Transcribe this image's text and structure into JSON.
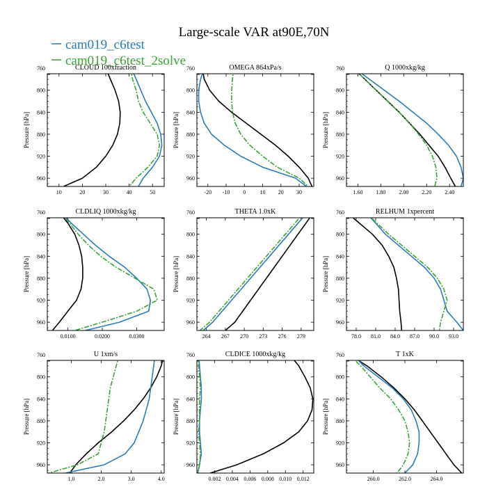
{
  "title": "Large-scale VAR at90E,70N",
  "colors": {
    "ref": "#000000",
    "test": "#2b7bb9",
    "solve": "#3aa335"
  },
  "legend": [
    {
      "label": "cam019_c6test",
      "color": "#2b7bb9",
      "style": "solid"
    },
    {
      "label": "cam019_c6test_2solve",
      "color": "#3aa335",
      "style": "dashdot"
    }
  ],
  "chart_data": [
    {
      "type": "line",
      "title": "CLOUD  100xfraction",
      "ylabel": "Pressure [hPa]",
      "ylim": [
        770,
        975
      ],
      "y_reversed": true,
      "xlim": [
        5,
        55
      ],
      "yticks": [
        760,
        800,
        840,
        880,
        920,
        960
      ],
      "xticks": [
        "10",
        "20",
        "30",
        "40",
        "50"
      ],
      "xtick_values": [
        10,
        20,
        30,
        40,
        50
      ],
      "y": [
        760,
        780,
        800,
        820,
        840,
        860,
        880,
        900,
        920,
        940,
        960,
        975
      ],
      "series": [
        {
          "ref": "black",
          "values": [
            30,
            32,
            34,
            35.5,
            36.2,
            36,
            35,
            33,
            30,
            26,
            20,
            12
          ]
        },
        {
          "ref": "test",
          "values": [
            41,
            43,
            45,
            47,
            49.5,
            52,
            53.5,
            54,
            53,
            50,
            46,
            44
          ]
        },
        {
          "ref": "solve",
          "values": [
            40.5,
            41.5,
            43,
            44,
            46,
            49,
            52,
            53,
            52,
            48,
            43,
            40
          ]
        }
      ]
    },
    {
      "type": "line",
      "title": "OMEGA  864xPa/s",
      "ylabel": "Pressure [hPa]",
      "ylim": [
        770,
        975
      ],
      "y_reversed": true,
      "xlim": [
        -26,
        38
      ],
      "yticks": [
        760,
        800,
        840,
        880,
        920,
        960
      ],
      "xticks": [
        "-20",
        "-10",
        "0",
        "10",
        "20",
        "30"
      ],
      "xtick_values": [
        -20,
        -10,
        0,
        10,
        20,
        30
      ],
      "y": [
        760,
        780,
        800,
        820,
        840,
        860,
        880,
        900,
        920,
        940,
        960,
        975
      ],
      "series": [
        {
          "ref": "black",
          "values": [
            -23,
            -22,
            -19,
            -14,
            -7,
            1,
            9,
            17,
            24,
            30,
            35,
            37
          ]
        },
        {
          "ref": "test",
          "values": [
            -22,
            -24,
            -25,
            -25,
            -24,
            -22,
            -18,
            -11,
            -2,
            10,
            28,
            34
          ]
        },
        {
          "ref": "solve",
          "values": [
            -6,
            -6.5,
            -7,
            -7,
            -6.5,
            -5,
            -2,
            3,
            10,
            18,
            30,
            35
          ]
        }
      ]
    },
    {
      "type": "line",
      "title": "Q  1000xkg/kg",
      "ylabel": "Pressure [hPa]",
      "ylim": [
        770,
        975
      ],
      "y_reversed": true,
      "xlim": [
        1.5,
        2.52
      ],
      "yticks": [
        760,
        800,
        840,
        880,
        920,
        960
      ],
      "xticks": [
        "1.60",
        "1.80",
        "2.00",
        "2.20",
        "2.40"
      ],
      "xtick_values": [
        1.6,
        1.8,
        2.0,
        2.2,
        2.4
      ],
      "y": [
        760,
        780,
        800,
        820,
        840,
        860,
        880,
        900,
        920,
        940,
        960,
        975
      ],
      "series": [
        {
          "ref": "black",
          "values": [
            1.56,
            1.66,
            1.76,
            1.86,
            1.96,
            2.05,
            2.14,
            2.22,
            2.3,
            2.36,
            2.41,
            2.45
          ]
        },
        {
          "ref": "test",
          "values": [
            1.57,
            1.7,
            1.83,
            1.96,
            2.08,
            2.2,
            2.3,
            2.39,
            2.46,
            2.5,
            2.52,
            2.5
          ]
        },
        {
          "ref": "solve",
          "values": [
            1.56,
            1.66,
            1.76,
            1.86,
            1.96,
            2.05,
            2.13,
            2.2,
            2.25,
            2.28,
            2.29,
            2.27
          ]
        }
      ]
    },
    {
      "type": "line",
      "title": "CLDLIQ  1000xkg/kg",
      "ylabel": "Pressure [hPa]",
      "ylim": [
        770,
        975
      ],
      "y_reversed": true,
      "xlim": [
        0.004,
        0.038
      ],
      "yticks": [
        760,
        800,
        840,
        880,
        920,
        960
      ],
      "xticks": [
        "0.0100",
        "0.0200",
        "0.0300"
      ],
      "xtick_values": [
        0.01,
        0.02,
        0.03
      ],
      "y": [
        760,
        780,
        800,
        820,
        840,
        860,
        880,
        900,
        920,
        940,
        960,
        975
      ],
      "series": [
        {
          "ref": "black",
          "values": [
            0.0075,
            0.01,
            0.012,
            0.0132,
            0.014,
            0.0143,
            0.0143,
            0.0138,
            0.0125,
            0.01,
            0.0075,
            0.0055
          ]
        },
        {
          "ref": "test",
          "values": [
            0.0078,
            0.011,
            0.0145,
            0.018,
            0.022,
            0.0265,
            0.03,
            0.033,
            0.034,
            0.0335,
            0.025,
            0.015
          ]
        },
        {
          "ref": "solve",
          "values": [
            0.0075,
            0.0105,
            0.013,
            0.016,
            0.0195,
            0.024,
            0.0295,
            0.035,
            0.036,
            0.03,
            0.02,
            0.012
          ]
        }
      ]
    },
    {
      "type": "line",
      "title": "THETA  1.0xK",
      "ylabel": "Pressure [hPa]",
      "ylim": [
        770,
        975
      ],
      "y_reversed": true,
      "xlim": [
        262.5,
        281
      ],
      "yticks": [
        760,
        800,
        840,
        880,
        920,
        960
      ],
      "xticks": [
        "264",
        "267",
        "270",
        "273",
        "276",
        "279"
      ],
      "xtick_values": [
        264,
        267,
        270,
        273,
        276,
        279
      ],
      "y": [
        760,
        800,
        840,
        880,
        920,
        960,
        975
      ],
      "series": [
        {
          "ref": "black",
          "values": [
            281,
            278.5,
            276,
            273.5,
            271,
            268.5,
            267
          ]
        },
        {
          "ref": "test",
          "values": [
            280,
            277,
            274,
            271,
            268,
            265,
            263.5
          ]
        },
        {
          "ref": "solve",
          "values": [
            279.5,
            276.5,
            273.5,
            270.5,
            267.5,
            264.5,
            263
          ]
        }
      ]
    },
    {
      "type": "line",
      "title": "RELHUM  1xpercent",
      "ylabel": "Pressure [hPa]",
      "ylim": [
        770,
        975
      ],
      "y_reversed": true,
      "xlim": [
        76.5,
        94.5
      ],
      "yticks": [
        760,
        800,
        840,
        880,
        920,
        960
      ],
      "xticks": [
        "78.0",
        "81.0",
        "84.0",
        "87.0",
        "90.0",
        "93.0"
      ],
      "xtick_values": [
        78,
        81,
        84,
        87,
        90,
        93
      ],
      "y": [
        760,
        780,
        800,
        820,
        840,
        860,
        880,
        900,
        920,
        940,
        960,
        975
      ],
      "series": [
        {
          "ref": "black",
          "values": [
            76.5,
            78.5,
            80.5,
            82,
            83,
            83.8,
            84.2,
            84.5,
            84.6,
            84.7,
            84.9,
            85
          ]
        },
        {
          "ref": "test",
          "values": [
            79.5,
            81,
            82.5,
            84.5,
            86.5,
            88.5,
            90,
            91,
            91.5,
            92,
            93.5,
            94.5
          ]
        },
        {
          "ref": "solve",
          "values": [
            79.5,
            81.2,
            83,
            85,
            87,
            89,
            90.5,
            91.5,
            92,
            91.5,
            91,
            90.8
          ]
        }
      ]
    },
    {
      "type": "line",
      "title": "U  1xm/s",
      "ylabel": "Pressure [hPa]",
      "ylim": [
        770,
        975
      ],
      "y_reversed": true,
      "xlim": [
        0.2,
        4.1
      ],
      "yticks": [
        760,
        800,
        840,
        880,
        920,
        960
      ],
      "xticks": [
        "1.0",
        "2.0",
        "3.0",
        "4.0"
      ],
      "xtick_values": [
        1,
        2,
        3,
        4
      ],
      "y": [
        760,
        780,
        800,
        820,
        840,
        860,
        880,
        900,
        920,
        940,
        960,
        975
      ],
      "series": [
        {
          "ref": "black",
          "values": [
            4.1,
            4.0,
            3.85,
            3.65,
            3.4,
            3.1,
            2.75,
            2.35,
            1.9,
            1.5,
            1.15,
            0.95
          ]
        },
        {
          "ref": "test",
          "values": [
            3.8,
            3.75,
            3.7,
            3.65,
            3.6,
            3.5,
            3.4,
            3.25,
            3.1,
            2.8,
            2.1,
            0.8
          ]
        },
        {
          "ref": "solve",
          "values": [
            2.6,
            2.5,
            2.4,
            2.3,
            2.25,
            2.2,
            2.15,
            2.1,
            2.0,
            1.9,
            1.2,
            0.25
          ]
        }
      ]
    },
    {
      "type": "line",
      "title": "CLDICE  1000xkg/kg",
      "ylabel": "Pressure [hPa]",
      "ylim": [
        770,
        975
      ],
      "y_reversed": true,
      "xlim": [
        0.0,
        0.0132
      ],
      "yticks": [
        760,
        800,
        840,
        880,
        920,
        960
      ],
      "xticks": [
        "0.002",
        "0.004",
        "0.006",
        "0.008",
        "0.010",
        "0.012"
      ],
      "xtick_values": [
        0.002,
        0.004,
        0.006,
        0.008,
        0.01,
        0.012
      ],
      "y": [
        760,
        780,
        800,
        820,
        840,
        860,
        880,
        900,
        920,
        940,
        960,
        975
      ],
      "series": [
        {
          "ref": "black",
          "values": [
            0.0105,
            0.0115,
            0.0122,
            0.0128,
            0.0131,
            0.013,
            0.0125,
            0.0115,
            0.0098,
            0.0075,
            0.0045,
            0.0015
          ]
        },
        {
          "ref": "test",
          "values": [
            0.0002,
            0.0003,
            0.0004,
            0.0005,
            0.0005,
            0.0004,
            0.0003,
            0.0003,
            0.0004,
            0.0005,
            0.0003,
            0.0001
          ]
        },
        {
          "ref": "solve",
          "values": [
            0.0002,
            0.0002,
            0.0003,
            0.0004,
            0.0003,
            0.0003,
            0.0003,
            0.0002,
            0.0003,
            0.0004,
            0.0003,
            0.0001
          ]
        }
      ]
    },
    {
      "type": "line",
      "title": "T  1xK",
      "ylabel": "Pressure [hPa]",
      "ylim": [
        770,
        975
      ],
      "y_reversed": true,
      "xlim": [
        258.3,
        265.7
      ],
      "yticks": [
        760,
        800,
        840,
        880,
        920,
        960
      ],
      "xticks": [
        "260.0",
        "262.0",
        "264.0"
      ],
      "xtick_values": [
        260,
        262,
        264
      ],
      "y": [
        760,
        780,
        800,
        820,
        840,
        860,
        880,
        900,
        920,
        940,
        960,
        975
      ],
      "series": [
        {
          "ref": "black",
          "values": [
            258.5,
            259.6,
            260.5,
            261.3,
            262.0,
            262.6,
            263.1,
            263.6,
            264.1,
            264.6,
            265.1,
            265.6
          ]
        },
        {
          "ref": "test",
          "values": [
            258.7,
            259.4,
            260.3,
            261.2,
            261.9,
            262.4,
            262.7,
            262.9,
            262.9,
            262.8,
            262.5,
            262.0
          ]
        },
        {
          "ref": "solve",
          "values": [
            258.5,
            259.2,
            259.8,
            260.4,
            261.1,
            261.6,
            262.0,
            262.2,
            262.3,
            262.2,
            261.9,
            261.5
          ]
        }
      ]
    }
  ]
}
